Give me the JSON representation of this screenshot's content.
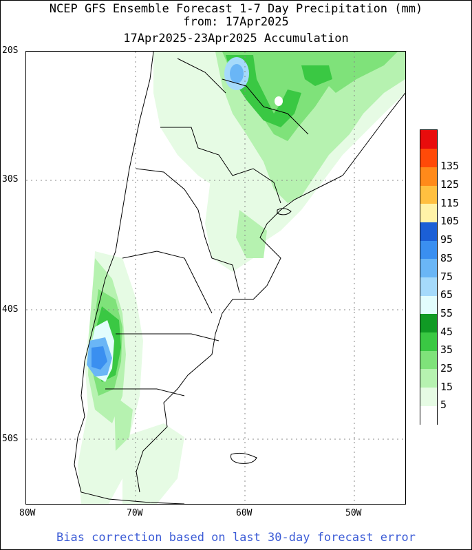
{
  "title": {
    "line1": "NCEP GFS Ensemble Forecast 1-7 Day Precipitation (mm)",
    "line2": "from: 17Apr2025",
    "line3": "17Apr2025-23Apr2025 Accumulation"
  },
  "axes": {
    "lat_labels": [
      "20S",
      "30S",
      "40S",
      "50S"
    ],
    "lon_labels": [
      "80W",
      "70W",
      "60W",
      "50W"
    ]
  },
  "legend": {
    "levels": [
      "5",
      "15",
      "25",
      "35",
      "45",
      "55",
      "65",
      "75",
      "85",
      "95",
      "105",
      "115",
      "125",
      "135"
    ],
    "colors": [
      "#ffffff",
      "#e6fbe4",
      "#b6f2b0",
      "#7fe27a",
      "#3ac843",
      "#109a24",
      "#e2fdfd",
      "#a5dafb",
      "#6ab6f6",
      "#3a8ff0",
      "#1b5fd6",
      "#fff3a8",
      "#ffc040",
      "#ff8a1a",
      "#ff4a08",
      "#e80c0c"
    ]
  },
  "footer": "Bias correction based on last 30-day forecast error"
}
